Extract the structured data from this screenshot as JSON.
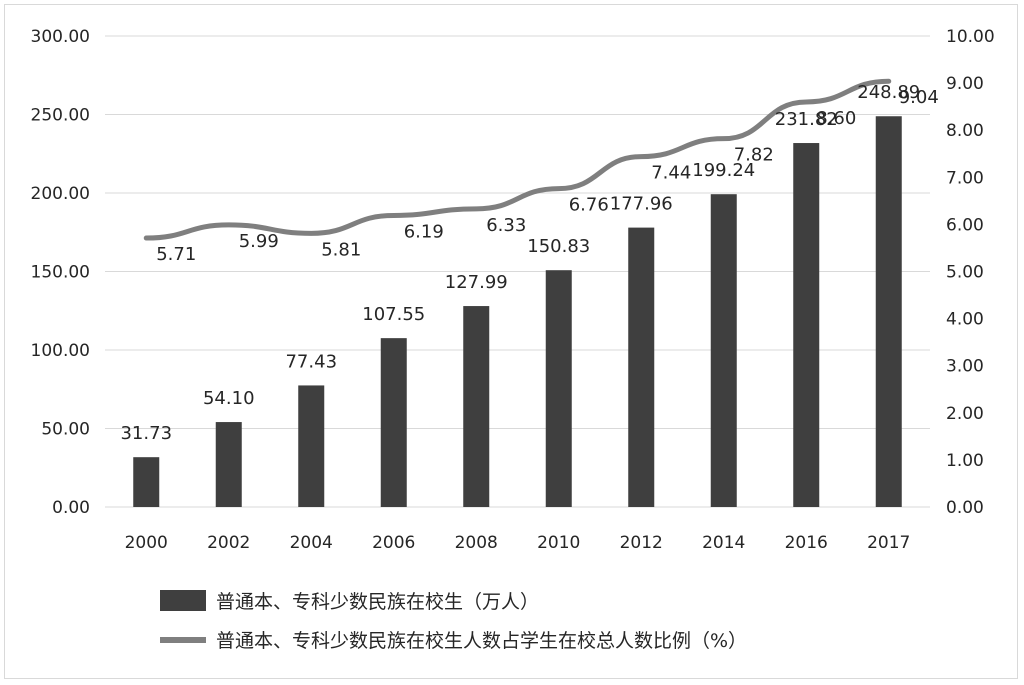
{
  "chart_data": {
    "type": "bar+line",
    "categories": [
      "2000",
      "2002",
      "2004",
      "2006",
      "2008",
      "2010",
      "2012",
      "2014",
      "2016",
      "2017"
    ],
    "series": [
      {
        "name": "普通本、专科少数民族在校生（万人）",
        "type": "bar",
        "axis": "left",
        "values": [
          31.73,
          54.1,
          77.43,
          107.55,
          127.99,
          150.83,
          177.96,
          199.24,
          231.82,
          248.89
        ],
        "labels": [
          "31.73",
          "54.10",
          "77.43",
          "107.55",
          "127.99",
          "150.83",
          "177.96",
          "199.24",
          "231.82",
          "248.89"
        ],
        "color": "#3f3f3f"
      },
      {
        "name": "普通本、专科少数民族在校生人数占学生在校总人数比例（%）",
        "type": "line",
        "axis": "right",
        "values": [
          5.71,
          5.99,
          5.81,
          6.19,
          6.33,
          6.76,
          7.44,
          7.82,
          8.6,
          9.04
        ],
        "labels": [
          "5.71",
          "5.99",
          "5.81",
          "6.19",
          "6.33",
          "6.76",
          "7.44",
          "7.82",
          "8.60",
          "9.04"
        ],
        "color": "#7f7f7f"
      }
    ],
    "y_left": {
      "range": [
        0,
        300
      ],
      "ticks": [
        "0.00",
        "50.00",
        "100.00",
        "150.00",
        "200.00",
        "250.00",
        "300.00"
      ]
    },
    "y_right": {
      "range": [
        0,
        10
      ],
      "ticks": [
        "0.00",
        "1.00",
        "2.00",
        "3.00",
        "4.00",
        "5.00",
        "6.00",
        "7.00",
        "8.00",
        "9.00",
        "10.00"
      ]
    },
    "grid": true,
    "legend": "bottom"
  }
}
